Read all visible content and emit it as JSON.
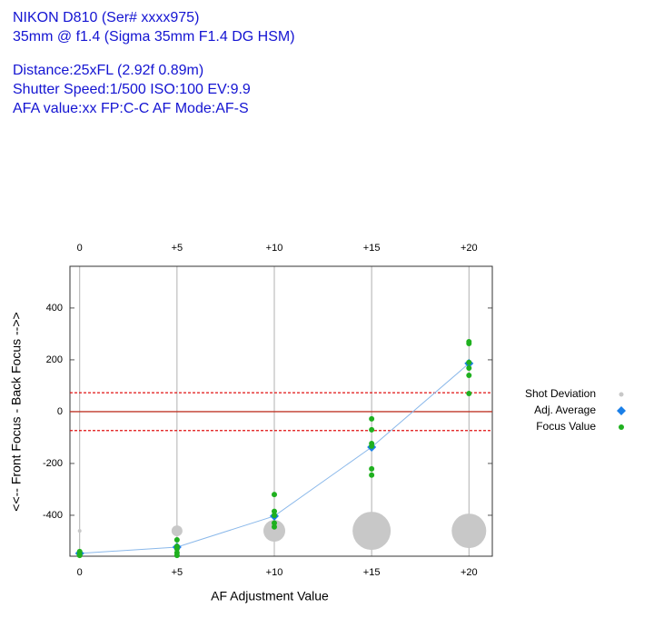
{
  "header": {
    "lines": [
      "NIKON D810 (Ser# xxxx975)",
      "35mm @ f1.4  (Sigma 35mm F1.4 DG HSM)",
      "Distance:25xFL  (2.92f  0.89m)",
      "Shutter Speed:1/500  ISO:100  EV:9.9",
      "AFA value:xx  FP:C-C  AF Mode:AF-S"
    ]
  },
  "chart_data": {
    "type": "scatter",
    "x_label": "AF Adjustment Value",
    "y_label": "<<-- Front Focus - Back Focus -->>",
    "xlim": [
      -0.5,
      21.2
    ],
    "ylim": [
      -558,
      561
    ],
    "xticks": [
      0,
      {
        "value": 5,
        "label": "+5"
      },
      {
        "value": 10,
        "label": "+10"
      },
      {
        "value": 15,
        "label": "+15"
      },
      {
        "value": 20,
        "label": "+20"
      }
    ],
    "yticks": [
      -400,
      -200,
      0,
      200,
      400
    ],
    "grid": true,
    "reference_lines": [
      {
        "value": 0,
        "color": "#c0392b",
        "style": "solid"
      },
      {
        "value": 73,
        "color": "#e01010",
        "style": "dashed"
      },
      {
        "value": -73,
        "color": "#e01010",
        "style": "dashed"
      }
    ],
    "legend": "right",
    "series": [
      {
        "name": "Shot Deviation",
        "color": "#c8c8c8",
        "x": [
          0,
          5,
          10,
          15,
          20
        ],
        "values": [
          -460,
          -460,
          -460,
          -460,
          -460
        ],
        "sizes": [
          4,
          12,
          24,
          42,
          38
        ]
      },
      {
        "name": "Adj. Average",
        "color": "#1a7fe8",
        "line_color": "#8ab8ea",
        "x": [
          0,
          5,
          10,
          15,
          20
        ],
        "values": [
          -547,
          -523,
          -403,
          -137,
          186
        ]
      },
      {
        "name": "Focus Value",
        "color": "#1fb01f",
        "x": [
          0,
          0,
          0,
          5,
          5,
          5,
          5,
          5,
          10,
          10,
          10,
          10,
          10,
          15,
          15,
          15,
          15,
          15,
          15,
          20,
          20,
          20,
          20,
          20,
          20
        ],
        "values": [
          -540,
          -550,
          -555,
          -495,
          -520,
          -530,
          -545,
          -555,
          -320,
          -385,
          -400,
          -430,
          -445,
          -28,
          -70,
          -123,
          -133,
          -221,
          -245,
          270,
          263,
          190,
          168,
          140,
          70
        ]
      }
    ]
  }
}
